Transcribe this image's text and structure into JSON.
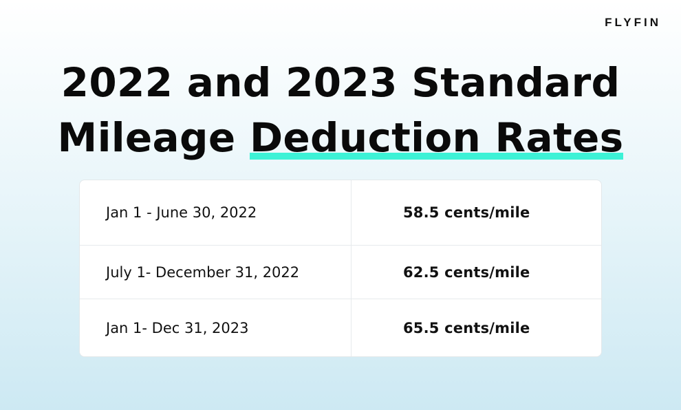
{
  "brand": {
    "logo_text": "FLYFIN"
  },
  "headline": {
    "line1": "2022 and 2023 Standard",
    "line2_plain": "Mileage ",
    "line2_highlight": "Deduction Rates",
    "highlight_color": "#3df2d6"
  },
  "rates_table": {
    "rows": [
      {
        "period": "Jan 1 - June 30, 2022",
        "rate": "58.5 cents/mile"
      },
      {
        "period": "July 1- December 31, 2022",
        "rate": "62.5 cents/mile"
      },
      {
        "period": "Jan 1- Dec 31, 2023",
        "rate": "65.5 cents/mile"
      }
    ]
  }
}
